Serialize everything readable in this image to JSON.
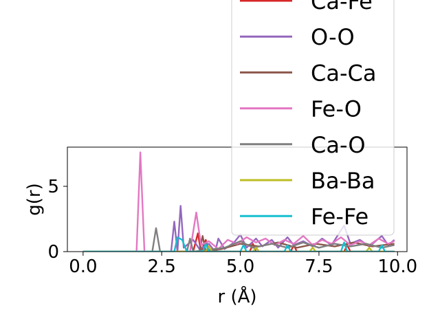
{
  "chart_data": {
    "type": "line",
    "title": "",
    "xlabel": "r (Å)",
    "ylabel": "g(r)",
    "xlim": [
      -0.5,
      10.3
    ],
    "ylim": [
      0,
      8
    ],
    "xticks": [
      "0.0",
      "2.5",
      "5.0",
      "7.5",
      "10.0"
    ],
    "xtick_values": [
      0,
      2.5,
      5,
      7.5,
      10
    ],
    "yticks": [
      "0",
      "5"
    ],
    "ytick_values": [
      0,
      5
    ],
    "grid": false,
    "legend_position": "upper right",
    "series": [
      {
        "name": "Ca-Fe",
        "color": "#d62728",
        "points": [
          [
            0,
            0
          ],
          [
            3.5,
            0
          ],
          [
            3.65,
            1.4
          ],
          [
            3.75,
            0
          ],
          [
            3.9,
            0.9
          ],
          [
            4.0,
            0
          ],
          [
            5.3,
            0
          ],
          [
            5.4,
            0.6
          ],
          [
            5.5,
            0
          ],
          [
            6.6,
            0
          ],
          [
            6.7,
            0.5
          ],
          [
            6.8,
            0
          ],
          [
            8.3,
            0
          ],
          [
            8.4,
            0.5
          ],
          [
            8.5,
            0
          ],
          [
            9.9,
            0
          ]
        ]
      },
      {
        "name": "O-O",
        "color": "#9467bd",
        "points": [
          [
            0,
            0
          ],
          [
            2.8,
            0
          ],
          [
            2.9,
            2.3
          ],
          [
            3.0,
            0
          ],
          [
            3.1,
            3.5
          ],
          [
            3.2,
            0.3
          ],
          [
            3.5,
            0.9
          ],
          [
            3.7,
            0.2
          ],
          [
            4.0,
            0.6
          ],
          [
            4.2,
            0
          ],
          [
            4.3,
            1.0
          ],
          [
            4.5,
            0.2
          ],
          [
            4.8,
            0.7
          ],
          [
            5.0,
            1.3
          ],
          [
            5.2,
            0.3
          ],
          [
            5.5,
            1.0
          ],
          [
            5.7,
            0.4
          ],
          [
            6.0,
            0.9
          ],
          [
            6.2,
            0.3
          ],
          [
            6.5,
            1.1
          ],
          [
            6.7,
            0.5
          ],
          [
            7.0,
            0.8
          ],
          [
            7.3,
            0.4
          ],
          [
            7.6,
            1.0
          ],
          [
            7.9,
            0.5
          ],
          [
            8.3,
            2.0
          ],
          [
            8.5,
            0.6
          ],
          [
            8.8,
            0.9
          ],
          [
            9.1,
            0.4
          ],
          [
            9.5,
            1.2
          ],
          [
            9.7,
            0.5
          ],
          [
            9.9,
            0.9
          ]
        ]
      },
      {
        "name": "Ca-Ca",
        "color": "#8c564b",
        "points": [
          [
            0,
            0
          ],
          [
            3.7,
            0
          ],
          [
            3.8,
            1.2
          ],
          [
            3.9,
            0
          ],
          [
            4.4,
            0.2
          ],
          [
            5.0,
            0.6
          ],
          [
            5.6,
            0.4
          ],
          [
            6.2,
            0.7
          ],
          [
            6.8,
            0.3
          ],
          [
            7.4,
            0.6
          ],
          [
            8.0,
            0.4
          ],
          [
            8.6,
            0.7
          ],
          [
            9.2,
            0.4
          ],
          [
            9.9,
            0.6
          ]
        ]
      },
      {
        "name": "Fe-O",
        "color": "#e377c2",
        "points": [
          [
            0,
            0
          ],
          [
            1.7,
            0
          ],
          [
            1.82,
            7.6
          ],
          [
            1.95,
            0
          ],
          [
            3.4,
            0
          ],
          [
            3.6,
            3.0
          ],
          [
            3.75,
            0.5
          ],
          [
            4.0,
            0.8
          ],
          [
            4.3,
            0.2
          ],
          [
            4.6,
            0.9
          ],
          [
            4.9,
            0.6
          ],
          [
            5.2,
            1.1
          ],
          [
            5.5,
            0.7
          ],
          [
            5.8,
            1.0
          ],
          [
            6.1,
            0.5
          ],
          [
            6.4,
            0.9
          ],
          [
            6.7,
            0.6
          ],
          [
            7.0,
            1.2
          ],
          [
            7.3,
            0.5
          ],
          [
            7.6,
            0.9
          ],
          [
            7.9,
            0.6
          ],
          [
            8.2,
            1.1
          ],
          [
            8.5,
            0.5
          ],
          [
            8.8,
            0.8
          ],
          [
            9.1,
            0.5
          ],
          [
            9.4,
            1.0
          ],
          [
            9.7,
            0.6
          ],
          [
            9.9,
            0.8
          ]
        ]
      },
      {
        "name": "Ca-O",
        "color": "#7f7f7f",
        "points": [
          [
            0,
            0
          ],
          [
            2.2,
            0
          ],
          [
            2.32,
            1.8
          ],
          [
            2.45,
            0
          ],
          [
            3.3,
            0
          ],
          [
            3.4,
            1.0
          ],
          [
            3.5,
            0
          ],
          [
            4.5,
            0.3
          ],
          [
            5.0,
            0.8
          ],
          [
            5.4,
            0.3
          ],
          [
            6.0,
            0.6
          ],
          [
            6.5,
            0.3
          ],
          [
            7.0,
            0.7
          ],
          [
            7.5,
            0.3
          ],
          [
            8.0,
            0.6
          ],
          [
            8.5,
            0.4
          ],
          [
            9.0,
            0.6
          ],
          [
            9.5,
            0.3
          ],
          [
            9.9,
            0.5
          ]
        ]
      },
      {
        "name": "Ba-Ba",
        "color": "#bcbd22",
        "points": [
          [
            0,
            0
          ],
          [
            3.9,
            0
          ],
          [
            4.0,
            0.4
          ],
          [
            4.1,
            0
          ],
          [
            5.4,
            0
          ],
          [
            5.5,
            0.3
          ],
          [
            5.6,
            0
          ],
          [
            7.2,
            0
          ],
          [
            7.3,
            0.3
          ],
          [
            7.4,
            0
          ],
          [
            9.0,
            0
          ],
          [
            9.1,
            0.3
          ],
          [
            9.2,
            0
          ],
          [
            9.9,
            0
          ]
        ]
      },
      {
        "name": "Fe-Fe",
        "color": "#17becf",
        "points": [
          [
            0,
            0
          ],
          [
            2.9,
            0
          ],
          [
            3.0,
            1.1
          ],
          [
            3.15,
            0.9
          ],
          [
            3.3,
            0
          ],
          [
            3.8,
            0
          ],
          [
            3.9,
            0.6
          ],
          [
            4.0,
            0
          ],
          [
            5.0,
            0
          ],
          [
            5.1,
            0.5
          ],
          [
            5.2,
            0
          ],
          [
            6.4,
            0
          ],
          [
            6.5,
            0.5
          ],
          [
            6.6,
            0
          ],
          [
            8.2,
            0
          ],
          [
            8.3,
            0.7
          ],
          [
            8.4,
            0
          ],
          [
            9.4,
            0
          ],
          [
            9.5,
            0.5
          ],
          [
            9.6,
            0
          ],
          [
            9.9,
            0
          ]
        ]
      }
    ]
  }
}
